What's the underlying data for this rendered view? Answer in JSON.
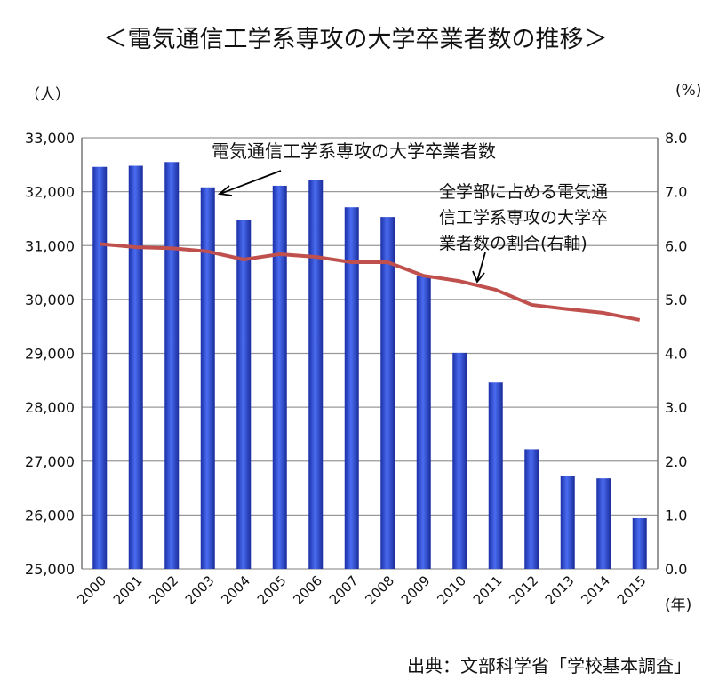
{
  "chart_data": {
    "type": "bar",
    "title": "＜電気通信工学系専攻の大学卒業者数の推移＞",
    "y_unit": "（人）",
    "y2_unit": "(%)",
    "x_unit": "(年)",
    "source": "出典：文部科学省「学校基本調査」",
    "categories": [
      "2000",
      "2001",
      "2002",
      "2003",
      "2004",
      "2005",
      "2006",
      "2007",
      "2008",
      "2009",
      "2010",
      "2011",
      "2012",
      "2013",
      "2014",
      "2015"
    ],
    "ylim": [
      25000,
      33000
    ],
    "y_ticks": [
      "25,000",
      "26,000",
      "27,000",
      "28,000",
      "29,000",
      "30,000",
      "31,000",
      "32,000",
      "33,000"
    ],
    "y2lim": [
      0,
      8
    ],
    "y2_ticks": [
      "0.0",
      "1.0",
      "2.0",
      "3.0",
      "4.0",
      "5.0",
      "6.0",
      "7.0",
      "8.0"
    ],
    "grid": true,
    "series": [
      {
        "name": "電気通信工学系専攻の大学卒業者数",
        "type": "bar",
        "axis": "left",
        "color": "#2f4fdc",
        "values": [
          32460,
          32480,
          32550,
          32080,
          31480,
          32110,
          32210,
          31710,
          31530,
          30440,
          29010,
          28460,
          27220,
          26730,
          26680,
          25940
        ]
      },
      {
        "name": "全学部に占める電気通信工学系専攻の大学卒業者数の割合(右軸)",
        "type": "line",
        "axis": "right",
        "color": "#c0504d",
        "values": [
          6.03,
          5.97,
          5.95,
          5.89,
          5.74,
          5.84,
          5.79,
          5.69,
          5.69,
          5.44,
          5.34,
          5.18,
          4.9,
          4.82,
          4.75,
          4.62
        ]
      }
    ],
    "annotations": [
      {
        "text": "電気通信工学系専攻の大学卒業者数",
        "points_to": "2003"
      },
      {
        "lines": [
          "全学部に占める電気通",
          "信工学系専攻の大学卒",
          "業者数の割合(右軸)"
        ],
        "points_to": "2011"
      }
    ]
  }
}
